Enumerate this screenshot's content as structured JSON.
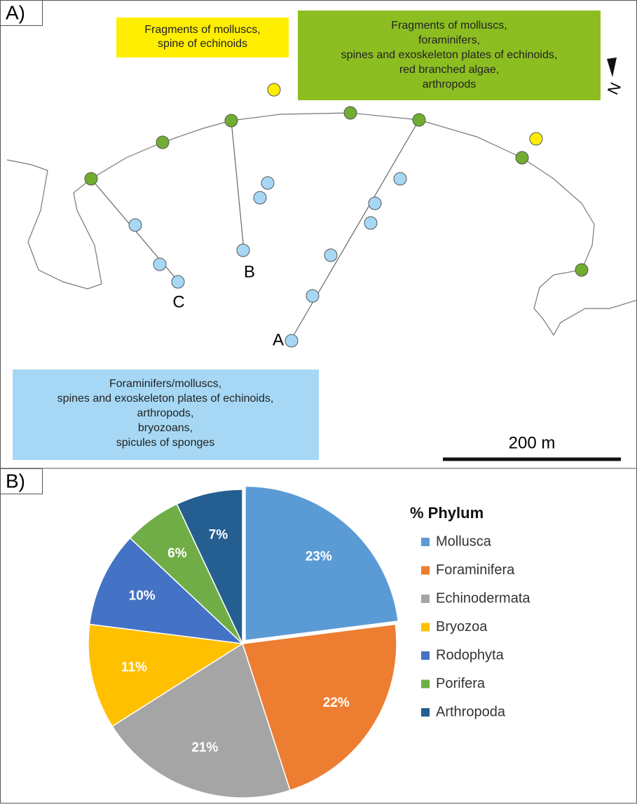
{
  "panel_a": {
    "label": "A)",
    "yellow_box": [
      "Fragments of molluscs,",
      "spine of echinoids"
    ],
    "green_box": [
      "Fragments of molluscs,",
      "foraminifers,",
      "spines and exoskeleton plates of echinoids,",
      "red branched algae,",
      "arthropods"
    ],
    "blue_box": [
      "Foraminifers/molluscs,",
      "spines and exoskeleton plates of echinoids,",
      "arthropods,",
      "bryozoans,",
      "spicules of sponges"
    ],
    "north": "N",
    "scale": "200 m",
    "transects": [
      "A",
      "B",
      "C"
    ]
  },
  "panel_b_label": "B)",
  "chart_data": {
    "type": "pie",
    "legend_title": "% Phylum",
    "categories": [
      "Mollusca",
      "Foraminifera",
      "Echinodermata",
      "Bryozoa",
      "Rodophyta",
      "Porifera",
      "Arthropoda"
    ],
    "values": [
      23,
      22,
      21,
      11,
      10,
      6,
      7
    ],
    "value_labels": [
      "23%",
      "22%",
      "21%",
      "11%",
      "10%",
      "6%",
      "7%"
    ],
    "colors": [
      "#5b9bd5",
      "#ed7d31",
      "#a5a5a5",
      "#ffc000",
      "#4472c4",
      "#70ad47",
      "#255e91"
    ]
  }
}
